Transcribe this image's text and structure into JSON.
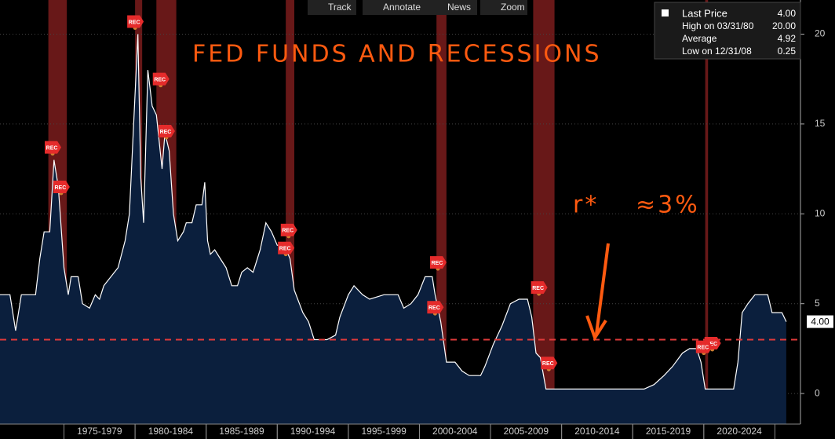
{
  "chart_data": {
    "type": "area",
    "annotation": "FED FUNDS AND RECESSIONS",
    "annotation_r": "r*",
    "annotation_pct": "≈3%",
    "toolbar": [
      "Track",
      "Annotate",
      "News",
      "Zoom"
    ],
    "legend": [
      {
        "name": "Last Price",
        "value": "4.00"
      },
      {
        "name": "High on 03/31/80",
        "value": "20.00"
      },
      {
        "name": "Average",
        "value": "4.92"
      },
      {
        "name": "Low on 12/31/08",
        "value": "0.25"
      }
    ],
    "x": [
      1970.5,
      1971.2,
      1971.6,
      1972,
      1973,
      1973.3,
      1973.6,
      1974,
      1974.3,
      1974.6,
      1975,
      1975.3,
      1975.5,
      1976,
      1976.3,
      1976.8,
      1977.2,
      1977.5,
      1977.8,
      1978.3,
      1978.8,
      1979.3,
      1979.6,
      1980.2,
      1980.4,
      1980.6,
      1980.9,
      1981.2,
      1981.5,
      1981.9,
      1982.1,
      1982.4,
      1982.7,
      1983,
      1983.4,
      1983.6,
      1984,
      1984.3,
      1984.7,
      1984.9,
      1985.1,
      1985.3,
      1985.6,
      1986,
      1986.4,
      1986.8,
      1987.2,
      1987.5,
      1987.9,
      1988.3,
      1988.8,
      1989.2,
      1989.6,
      1990,
      1990.5,
      1990.9,
      1991.2,
      1991.8,
      1992.2,
      1992.6,
      1993.5,
      1994.1,
      1994.4,
      1995,
      1995.4,
      1996,
      1996.5,
      1997.5,
      1998.5,
      1998.9,
      1999.4,
      1999.9,
      2000.4,
      2000.9,
      2001.1,
      2001.5,
      2001.9,
      2002.5,
      2003,
      2003.5,
      2004.3,
      2004.6,
      2005.2,
      2005.8,
      2006.4,
      2007,
      2007.6,
      2007.9,
      2008.2,
      2008.5,
      2008.9,
      2015.8,
      2016.5,
      2017.2,
      2017.8,
      2018.5,
      2019,
      2019.5,
      2019.8,
      2020.1,
      2022.1,
      2022.4,
      2022.7,
      2023.1,
      2023.6,
      2024.5,
      2024.8,
      2025.5,
      2025.8
    ],
    "series": [
      {
        "name": "Fed Funds",
        "color": "#ffffff",
        "fill": "#0b1f3d",
        "values": [
          5.5,
          5.5,
          3.5,
          5.5,
          5.5,
          7.5,
          9,
          9,
          13,
          11.5,
          7,
          5.5,
          6.5,
          6.5,
          5,
          4.75,
          5.5,
          5.25,
          6,
          6.5,
          7,
          8.5,
          10,
          20,
          12,
          9.5,
          18,
          16,
          15.5,
          12.5,
          14.5,
          13.5,
          10,
          8.5,
          9,
          9.5,
          9.5,
          10.5,
          10.5,
          11.75,
          8.5,
          7.75,
          8,
          7.5,
          7,
          6,
          6,
          6.75,
          7,
          6.75,
          8,
          9.5,
          9,
          8.25,
          8.25,
          7.5,
          5.75,
          4.5,
          4,
          3,
          3,
          3.25,
          4.25,
          5.5,
          6,
          5.5,
          5.25,
          5.5,
          5.5,
          4.75,
          5,
          5.5,
          6.5,
          6.5,
          5.5,
          4,
          1.75,
          1.75,
          1.25,
          1,
          1,
          1.5,
          2.75,
          3.75,
          5,
          5.25,
          5.25,
          4.25,
          2.25,
          2,
          0.25,
          0.25,
          0.5,
          1,
          1.5,
          2.25,
          2.5,
          2.5,
          1.75,
          0.25,
          0.25,
          1.75,
          4.5,
          5,
          5.5,
          5.5,
          4.5,
          4.5,
          4
        ]
      }
    ],
    "recessions": [
      [
        1973.9,
        1975.2
      ],
      [
        1980,
        1980.5
      ],
      [
        1981.5,
        1982.9
      ],
      [
        1990.6,
        1991.2
      ],
      [
        2001.2,
        2001.9
      ],
      [
        2008,
        2009.5
      ],
      [
        2020.1,
        2020.3
      ]
    ],
    "recession_color": "#8b2020",
    "flags": [
      {
        "x": 1974.2,
        "y": 13.7,
        "label": "REC"
      },
      {
        "x": 1974.8,
        "y": 11.5,
        "label": "REC"
      },
      {
        "x": 1980,
        "y": 20.7,
        "label": "REC"
      },
      {
        "x": 1981.8,
        "y": 17.5,
        "label": "REC"
      },
      {
        "x": 1982.2,
        "y": 14.6,
        "label": "REC"
      },
      {
        "x": 1990.8,
        "y": 9.1,
        "label": "REC"
      },
      {
        "x": 1990.6,
        "y": 8.1,
        "label": "REC"
      },
      {
        "x": 2001.3,
        "y": 7.3,
        "label": "REC"
      },
      {
        "x": 2001.1,
        "y": 4.8,
        "label": "REC"
      },
      {
        "x": 2008.4,
        "y": 5.9,
        "label": "REC"
      },
      {
        "x": 2009.1,
        "y": 1.7,
        "label": "REC"
      },
      {
        "x": 2020.6,
        "y": 2.8,
        "label": "REC"
      },
      {
        "x": 2020.0,
        "y": 2.6,
        "label": "REC"
      }
    ],
    "reference_line": 3,
    "reference_color": "#e03a3a",
    "xlim": [
      1970.5,
      2026.8
    ],
    "ylim": [
      -1.7,
      21.9
    ],
    "yticks": [
      0,
      5,
      10,
      15,
      20
    ],
    "xticks": [
      {
        "value": 1977.5,
        "label": "1975-1979"
      },
      {
        "value": 1982.5,
        "label": "1980-1984"
      },
      {
        "value": 1987.5,
        "label": "1985-1989"
      },
      {
        "value": 1992.5,
        "label": "1990-1994"
      },
      {
        "value": 1997.5,
        "label": "1995-1999"
      },
      {
        "value": 2002.5,
        "label": "2000-2004"
      },
      {
        "value": 2007.5,
        "label": "2005-2009"
      },
      {
        "value": 2012.5,
        "label": "2010-2014"
      },
      {
        "value": 2017.5,
        "label": "2015-2019"
      },
      {
        "value": 2022.5,
        "label": "2020-2024"
      }
    ]
  }
}
